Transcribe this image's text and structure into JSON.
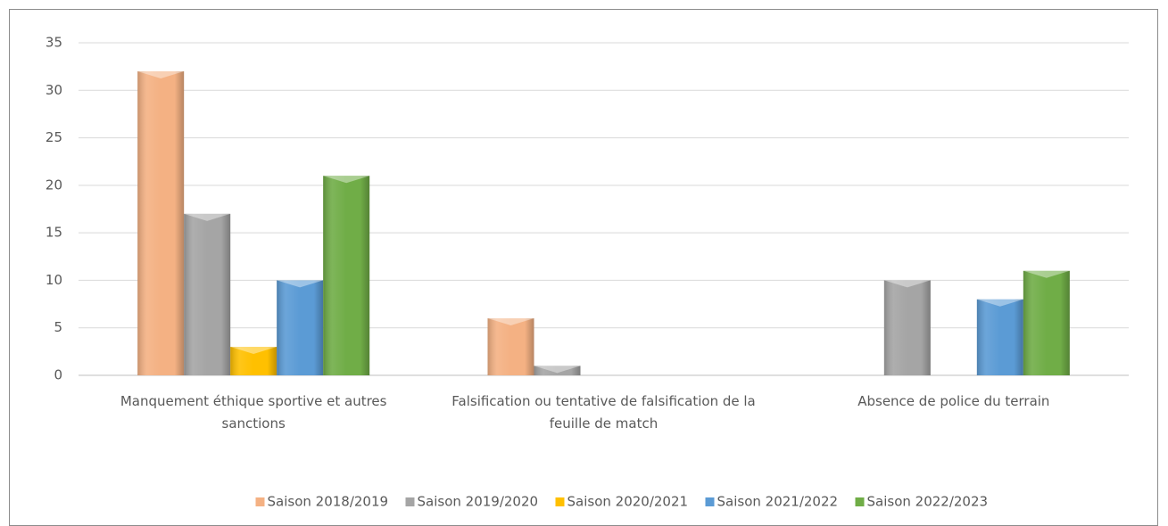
{
  "chart_data": {
    "type": "bar",
    "categories": [
      "Manquement éthique sportive et autres sanctions",
      "Falsification ou tentative de falsification de la feuille de match",
      "Absence de police du terrain"
    ],
    "series": [
      {
        "name": "Saison 2018/2019",
        "color": "#f4b183",
        "values": [
          32,
          6,
          0
        ]
      },
      {
        "name": "Saison 2019/2020",
        "color": "#a5a5a5",
        "values": [
          17,
          1,
          10
        ]
      },
      {
        "name": "Saison 2020/2021",
        "color": "#ffc000",
        "values": [
          3,
          0,
          0
        ]
      },
      {
        "name": "Saison 2021/2022",
        "color": "#5b9bd5",
        "values": [
          10,
          0,
          8
        ]
      },
      {
        "name": "Saison 2022/2023",
        "color": "#70ad47",
        "values": [
          21,
          0,
          11
        ]
      }
    ],
    "ylim": [
      0,
      35
    ],
    "yticks": [
      0,
      5,
      10,
      15,
      20,
      25,
      30,
      35
    ],
    "grid": true,
    "legend": "bottom"
  }
}
